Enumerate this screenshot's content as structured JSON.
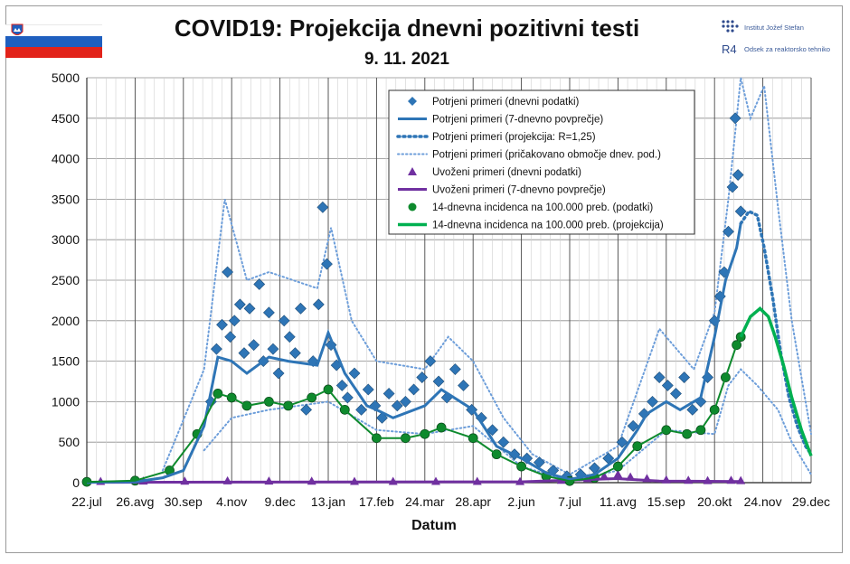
{
  "header": {
    "title": "COVID19: Projekcija dnevni pozitivni testi",
    "date": "9. 11. 2021",
    "institute": "Institut Jožef Stefan",
    "department": "Odsek za reaktorsko tehniko",
    "logo_mark": "R4"
  },
  "colors": {
    "confirmed": "#2e75b6",
    "confirmed_light": "#6d9eda",
    "imported": "#7030a0",
    "incidence": "#00b050",
    "incidence_marker": "#0e8a2d",
    "grid": "#8c8c8c"
  },
  "chart_data": {
    "type": "line",
    "title": "COVID19: Projekcija dnevni pozitivni testi",
    "xlabel": "Datum",
    "ylabel": "",
    "x_start": "2020-07-22",
    "x_end": "2021-12-29",
    "ylim": [
      0,
      5000
    ],
    "yticks": [
      "0",
      "500",
      "1000",
      "1500",
      "2000",
      "2500",
      "3000",
      "3500",
      "4000",
      "4500",
      "5000"
    ],
    "xticks": [
      "22.jul",
      "26.avg",
      "30.sep",
      "4.nov",
      "9.dec",
      "13.jan",
      "17.feb",
      "24.mar",
      "28.apr",
      "2.jun",
      "7.jul",
      "11.avg",
      "15.sep",
      "20.okt",
      "24.nov",
      "29.dec"
    ],
    "grid": true,
    "legend_position": "top-right",
    "legend": [
      {
        "label": "Potrjeni primeri (dnevni podatki)",
        "marker": "diamond"
      },
      {
        "label": "Potrjeni primeri (7-dnevno povprečje)",
        "marker": "line"
      },
      {
        "label": "Potrjeni primeri (projekcija: R=1,25)",
        "marker": "dotted"
      },
      {
        "label": "Potrjeni primeri (pričakovano območje dnev. pod.)",
        "marker": "dotted-light"
      },
      {
        "label": "Uvoženi primeri (dnevni podatki)",
        "marker": "triangle"
      },
      {
        "label": "Uvoženi primeri (7-dnevno povprečje)",
        "marker": "line-purple"
      },
      {
        "label": "14-dnevna incidenca na 100.000 preb. (podatki)",
        "marker": "circle"
      },
      {
        "label": "14-dnevna incidenca na 100.000 preb. (projekcija)",
        "marker": "line-green"
      }
    ],
    "series": [
      {
        "name": "Potrjeni primeri (7-dnevno povprečje)",
        "x": [
          "2020-07-22",
          "2020-08-26",
          "2020-09-15",
          "2020-09-30",
          "2020-10-15",
          "2020-10-25",
          "2020-11-04",
          "2020-11-15",
          "2020-12-01",
          "2020-12-15",
          "2021-01-05",
          "2021-01-13",
          "2021-01-25",
          "2021-02-10",
          "2021-02-17",
          "2021-03-01",
          "2021-03-24",
          "2021-04-05",
          "2021-04-28",
          "2021-05-15",
          "2021-06-02",
          "2021-06-20",
          "2021-07-07",
          "2021-07-25",
          "2021-08-11",
          "2021-08-25",
          "2021-09-01",
          "2021-09-15",
          "2021-09-25",
          "2021-10-10",
          "2021-10-20",
          "2021-10-28",
          "2021-11-05",
          "2021-11-08"
        ],
        "y": [
          5,
          10,
          60,
          150,
          700,
          1550,
          1500,
          1350,
          1550,
          1500,
          1450,
          1850,
          1350,
          950,
          900,
          800,
          950,
          1150,
          900,
          450,
          300,
          120,
          40,
          100,
          300,
          650,
          850,
          1000,
          900,
          1050,
          1800,
          2500,
          2900,
          3200
        ]
      },
      {
        "name": "Potrjeni primeri (projekcija: R=1,25)",
        "x": [
          "2021-11-08",
          "2021-11-14",
          "2021-11-20",
          "2021-11-25",
          "2021-12-01",
          "2021-12-07",
          "2021-12-13",
          "2021-12-19",
          "2021-12-25",
          "2021-12-29"
        ],
        "y": [
          3200,
          3350,
          3300,
          2900,
          2300,
          1600,
          1050,
          700,
          450,
          350
        ]
      },
      {
        "name": "Potrjeni primeri (pričakovano območje dnev. pod.) zgornja",
        "x": [
          "2020-09-15",
          "2020-10-15",
          "2020-10-30",
          "2020-11-15",
          "2020-12-01",
          "2021-01-05",
          "2021-01-15",
          "2021-01-30",
          "2021-02-17",
          "2021-03-24",
          "2021-04-10",
          "2021-04-28",
          "2021-05-20",
          "2021-06-10",
          "2021-07-07",
          "2021-08-11",
          "2021-09-10",
          "2021-10-05",
          "2021-10-20",
          "2021-10-30",
          "2021-11-08",
          "2021-11-15",
          "2021-11-25",
          "2021-12-05",
          "2021-12-15",
          "2021-12-29"
        ],
        "y": [
          150,
          1400,
          3500,
          2500,
          2600,
          2400,
          3150,
          2000,
          1500,
          1400,
          1800,
          1500,
          800,
          350,
          100,
          450,
          1900,
          1400,
          2100,
          3500,
          5000,
          4500,
          4900,
          3400,
          2000,
          600
        ]
      },
      {
        "name": "Potrjeni primeri (pričakovano območje dnev. pod.) spodnja",
        "x": [
          "2020-10-15",
          "2020-11-04",
          "2020-12-01",
          "2021-01-13",
          "2021-02-17",
          "2021-03-24",
          "2021-04-28",
          "2021-06-02",
          "2021-07-07",
          "2021-08-11",
          "2021-09-15",
          "2021-10-20",
          "2021-10-30",
          "2021-11-08",
          "2021-11-20",
          "2021-12-05",
          "2021-12-15",
          "2021-12-29"
        ],
        "y": [
          400,
          800,
          900,
          1000,
          650,
          600,
          700,
          200,
          20,
          150,
          650,
          600,
          1200,
          1400,
          1200,
          900,
          500,
          100
        ]
      },
      {
        "name": "14-dnevna incidenca na 100.000 preb. (podatki)",
        "x": [
          "2020-07-22",
          "2020-08-26",
          "2020-09-20",
          "2020-10-10",
          "2020-10-25",
          "2020-11-04",
          "2020-11-15",
          "2020-12-01",
          "2020-12-15",
          "2021-01-01",
          "2021-01-13",
          "2021-01-25",
          "2021-02-17",
          "2021-03-10",
          "2021-03-24",
          "2021-04-05",
          "2021-04-28",
          "2021-05-15",
          "2021-06-02",
          "2021-06-20",
          "2021-07-07",
          "2021-07-25",
          "2021-08-11",
          "2021-08-25",
          "2021-09-15",
          "2021-09-30",
          "2021-10-10",
          "2021-10-20",
          "2021-10-28",
          "2021-11-05",
          "2021-11-08"
        ],
        "y": [
          10,
          25,
          150,
          600,
          1100,
          1050,
          950,
          1000,
          950,
          1050,
          1150,
          900,
          550,
          550,
          600,
          680,
          550,
          350,
          200,
          80,
          20,
          60,
          200,
          450,
          650,
          600,
          650,
          900,
          1300,
          1700,
          1800
        ]
      },
      {
        "name": "14-dnevna incidenca na 100.000 preb. (projekcija)",
        "x": [
          "2021-11-08",
          "2021-11-15",
          "2021-11-22",
          "2021-11-28",
          "2021-12-03",
          "2021-12-09",
          "2021-12-15",
          "2021-12-22",
          "2021-12-29"
        ],
        "y": [
          1800,
          2050,
          2150,
          2050,
          1800,
          1450,
          1050,
          650,
          330
        ]
      },
      {
        "name": "Uvoženi primeri (7-dnevno povprečje)",
        "x": [
          "2020-07-22",
          "2021-06-01",
          "2021-08-10",
          "2021-09-10",
          "2021-11-08"
        ],
        "y": [
          5,
          10,
          50,
          20,
          15
        ]
      }
    ],
    "daily_confirmed": {
      "name": "Potrjeni primeri (dnevni podatki)",
      "x": [
        "2020-10-20",
        "2020-10-24",
        "2020-10-28",
        "2020-11-01",
        "2020-11-03",
        "2020-11-06",
        "2020-11-10",
        "2020-11-13",
        "2020-11-17",
        "2020-11-20",
        "2020-11-24",
        "2020-11-27",
        "2020-12-01",
        "2020-12-04",
        "2020-12-08",
        "2020-12-12",
        "2020-12-16",
        "2020-12-20",
        "2020-12-24",
        "2020-12-28",
        "2021-01-02",
        "2021-01-06",
        "2021-01-09",
        "2021-01-12",
        "2021-01-15",
        "2021-01-19",
        "2021-01-23",
        "2021-01-27",
        "2021-02-01",
        "2021-02-06",
        "2021-02-11",
        "2021-02-16",
        "2021-02-21",
        "2021-02-26",
        "2021-03-04",
        "2021-03-10",
        "2021-03-16",
        "2021-03-22",
        "2021-03-28",
        "2021-04-03",
        "2021-04-09",
        "2021-04-15",
        "2021-04-21",
        "2021-04-27",
        "2021-05-04",
        "2021-05-12",
        "2021-05-20",
        "2021-05-28",
        "2021-06-06",
        "2021-06-15",
        "2021-06-25",
        "2021-07-05",
        "2021-07-15",
        "2021-07-25",
        "2021-08-04",
        "2021-08-14",
        "2021-08-22",
        "2021-08-30",
        "2021-09-05",
        "2021-09-10",
        "2021-09-16",
        "2021-09-22",
        "2021-09-28",
        "2021-10-04",
        "2021-10-10",
        "2021-10-15",
        "2021-10-20",
        "2021-10-24",
        "2021-10-27",
        "2021-10-30",
        "2021-11-02",
        "2021-11-04",
        "2021-11-06",
        "2021-11-08"
      ],
      "y": [
        1000,
        1650,
        1950,
        2600,
        1800,
        2000,
        2200,
        1600,
        2150,
        1700,
        2450,
        1500,
        2100,
        1650,
        1350,
        2000,
        1800,
        1600,
        2150,
        900,
        1500,
        2200,
        3400,
        2700,
        1700,
        1450,
        1200,
        1050,
        1350,
        900,
        1150,
        950,
        800,
        1100,
        950,
        1000,
        1150,
        1300,
        1500,
        1250,
        1050,
        1400,
        1200,
        900,
        800,
        650,
        500,
        350,
        300,
        250,
        150,
        80,
        100,
        180,
        300,
        500,
        700,
        850,
        1000,
        1300,
        1200,
        1100,
        1300,
        900,
        1000,
        1300,
        2000,
        2300,
        2600,
        3100,
        3650,
        4500,
        3800,
        3350
      ]
    },
    "daily_imported": {
      "name": "Uvoženi primeri (dnevni podatki)",
      "x": [
        "2020-08-01",
        "2020-09-01",
        "2020-10-01",
        "2020-11-01",
        "2020-12-01",
        "2021-01-01",
        "2021-02-01",
        "2021-03-01",
        "2021-04-01",
        "2021-05-01",
        "2021-06-01",
        "2021-07-01",
        "2021-07-20",
        "2021-08-01",
        "2021-08-11",
        "2021-08-20",
        "2021-09-01",
        "2021-09-15",
        "2021-10-01",
        "2021-10-15",
        "2021-11-01",
        "2021-11-08"
      ],
      "y": [
        5,
        10,
        8,
        12,
        10,
        8,
        6,
        5,
        6,
        5,
        4,
        20,
        40,
        70,
        90,
        60,
        40,
        25,
        20,
        15,
        20,
        15
      ]
    }
  }
}
